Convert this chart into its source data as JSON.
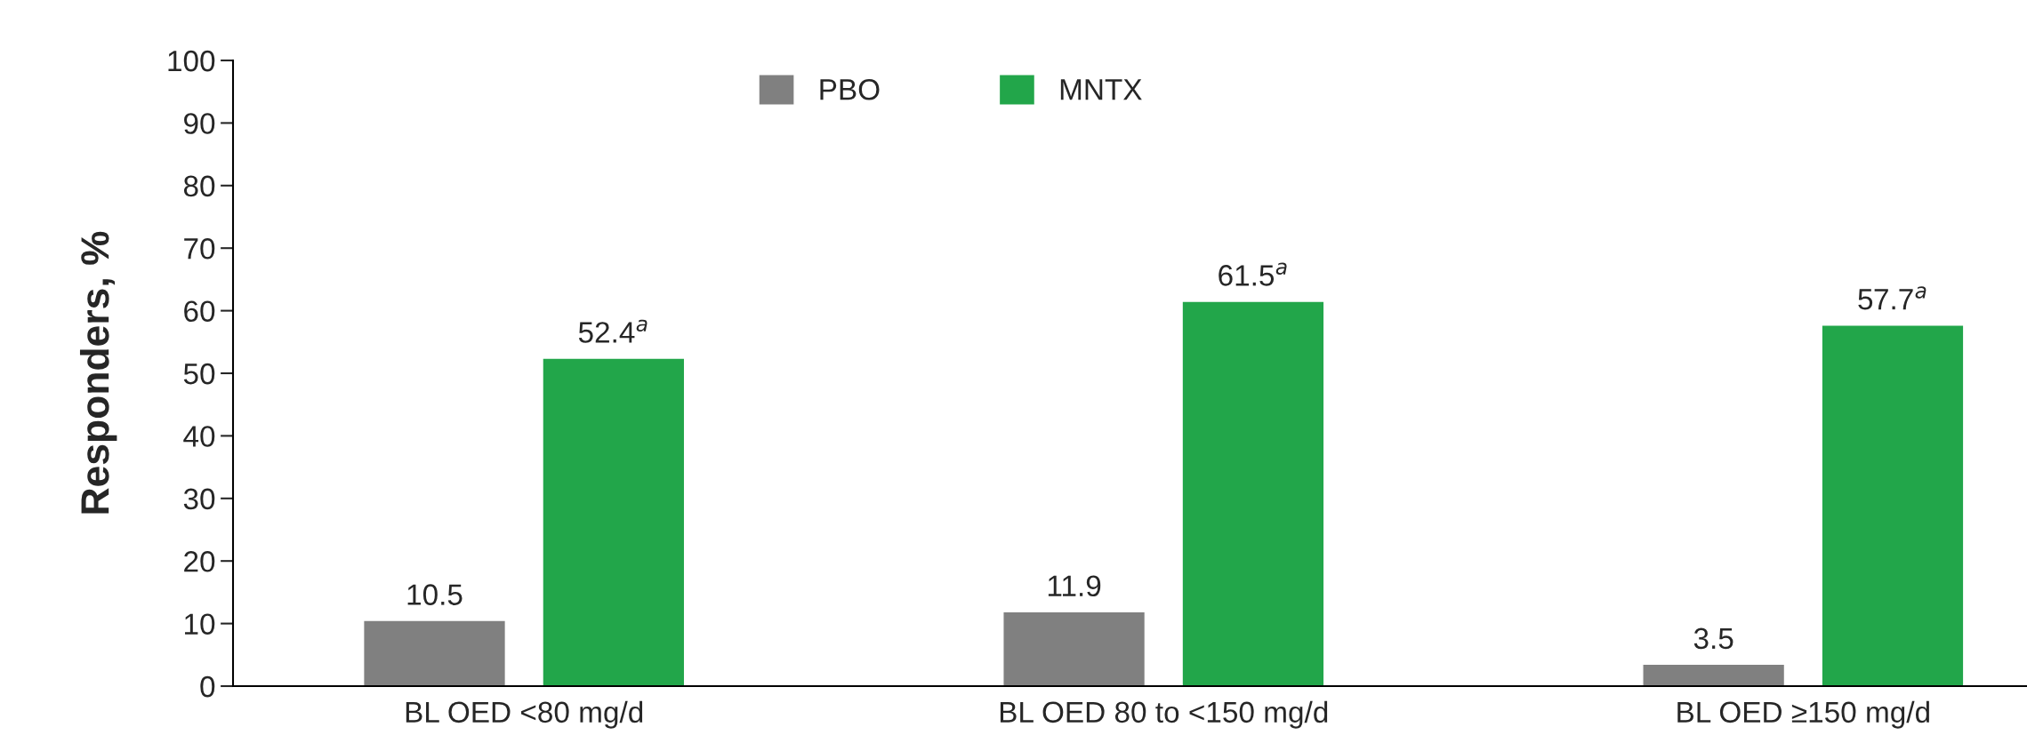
{
  "chart_data": {
    "type": "bar",
    "ylabel": "Responders, %",
    "categories": [
      "BL OED <80 mg/d",
      "BL OED 80 to <150 mg/d",
      "BL OED ≥150 mg/d"
    ],
    "series": [
      {
        "name": "PBO",
        "color": "#808080",
        "values": [
          10.5,
          11.9,
          3.5
        ],
        "value_labels": [
          "10.5",
          "11.9",
          "3.5"
        ]
      },
      {
        "name": "MNTX",
        "color": "#22a64a",
        "values": [
          52.4,
          61.5,
          57.7
        ],
        "value_labels": [
          "52.4$^{a}$",
          "61.5$^{a}$",
          "57.7$^{a}$"
        ]
      }
    ],
    "ylim": [
      0,
      100
    ],
    "yticks": [
      0,
      10,
      20,
      30,
      40,
      50,
      60,
      70,
      80,
      90,
      100
    ],
    "grid": false,
    "legend": "top"
  }
}
